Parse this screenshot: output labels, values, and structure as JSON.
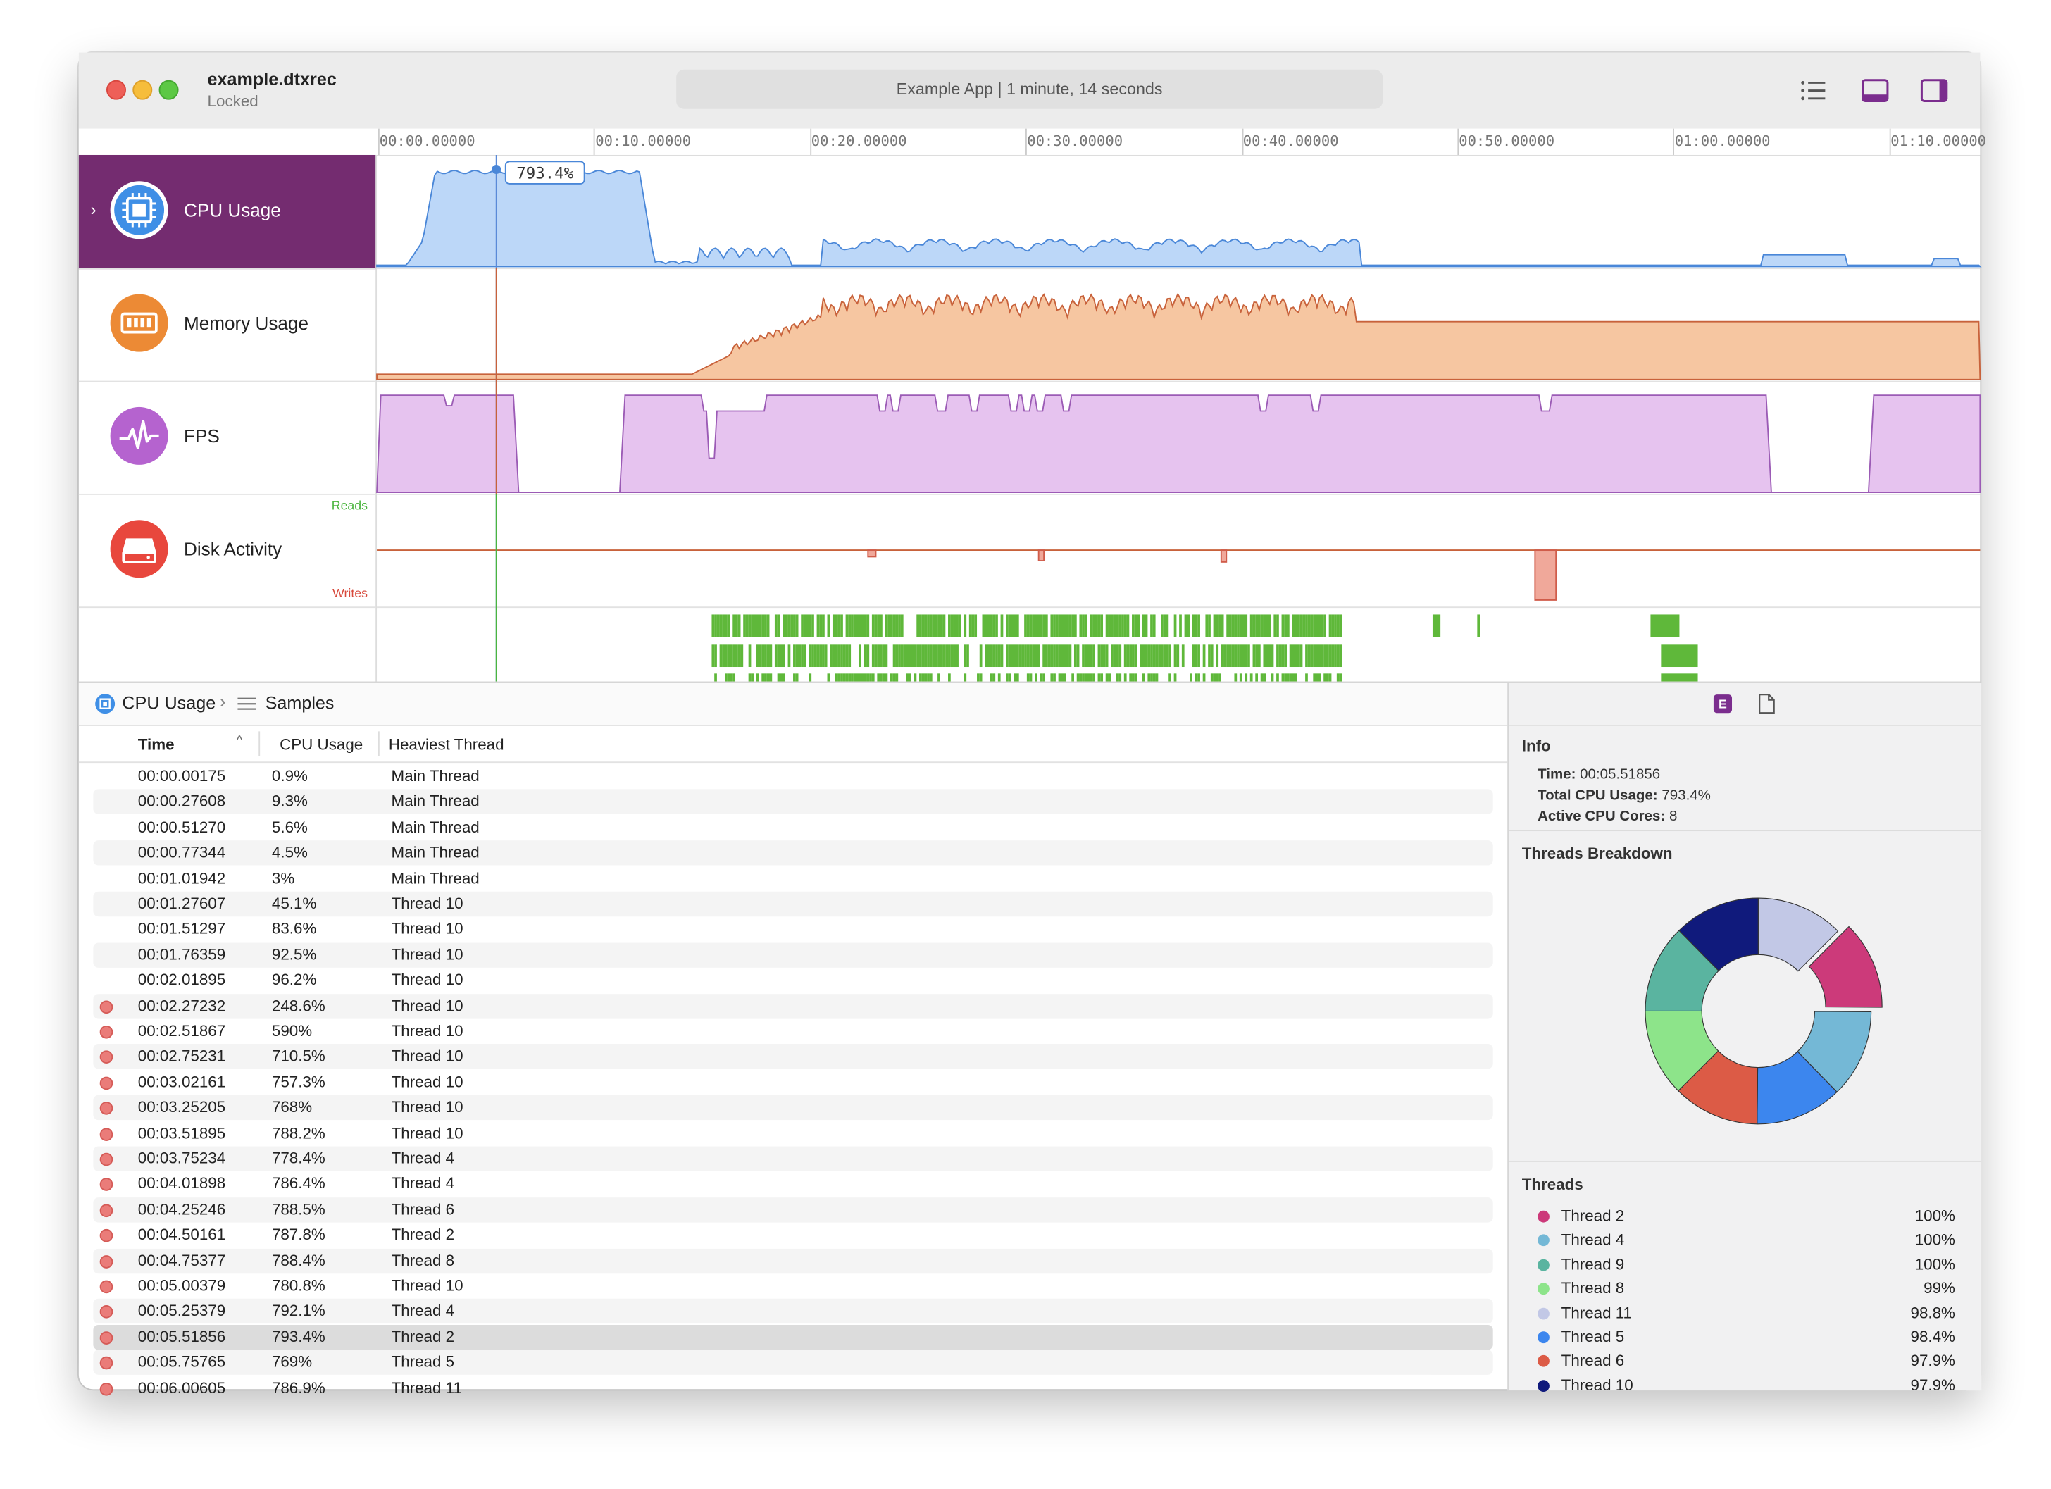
{
  "window": {
    "doc_title": "example.dtxrec",
    "doc_status": "Locked",
    "center_title": "Example App | 1 minute, 14 seconds"
  },
  "toolbar": {
    "icons": [
      "list-icon",
      "bottom-panel-icon",
      "right-panel-icon"
    ],
    "accent": "#7b2d8e"
  },
  "ruler": {
    "ticks": [
      "00:00.00000",
      "00:10.00000",
      "00:20.00000",
      "00:30.00000",
      "00:40.00000",
      "00:50.00000",
      "01:00.00000",
      "01:10.00000"
    ]
  },
  "timeline": {
    "cursor_value": "793.4%",
    "duration_seconds": 74,
    "cursor_seconds": 5.51856
  },
  "tracks": [
    {
      "name": "CPU Usage",
      "icon": "cpu-icon",
      "color": "#3f8fe6",
      "selected": true
    },
    {
      "name": "Memory Usage",
      "icon": "memory-icon",
      "color": "#ec8a35",
      "selected": false
    },
    {
      "name": "FPS",
      "icon": "fps-icon",
      "color": "#b563cf",
      "selected": false
    },
    {
      "name": "Disk Activity",
      "icon": "disk-icon",
      "color": "#e8473d",
      "selected": false,
      "reads_label": "Reads",
      "writes_label": "Writes"
    }
  ],
  "breadcrumb": {
    "first": "CPU Usage",
    "second": "Samples"
  },
  "table": {
    "headers": {
      "time": "Time",
      "cpu": "CPU Usage",
      "thread": "Heaviest Thread"
    },
    "rows": [
      {
        "time": "00:00.00175",
        "cpu": "0.9%",
        "thread": "Main Thread",
        "marker": false
      },
      {
        "time": "00:00.27608",
        "cpu": "9.3%",
        "thread": "Main Thread",
        "marker": false
      },
      {
        "time": "00:00.51270",
        "cpu": "5.6%",
        "thread": "Main Thread",
        "marker": false
      },
      {
        "time": "00:00.77344",
        "cpu": "4.5%",
        "thread": "Main Thread",
        "marker": false
      },
      {
        "time": "00:01.01942",
        "cpu": "3%",
        "thread": "Main Thread",
        "marker": false
      },
      {
        "time": "00:01.27607",
        "cpu": "45.1%",
        "thread": "Thread 10",
        "marker": false
      },
      {
        "time": "00:01.51297",
        "cpu": "83.6%",
        "thread": "Thread 10",
        "marker": false
      },
      {
        "time": "00:01.76359",
        "cpu": "92.5%",
        "thread": "Thread 10",
        "marker": false
      },
      {
        "time": "00:02.01895",
        "cpu": "96.2%",
        "thread": "Thread 10",
        "marker": false
      },
      {
        "time": "00:02.27232",
        "cpu": "248.6%",
        "thread": "Thread 10",
        "marker": true
      },
      {
        "time": "00:02.51867",
        "cpu": "590%",
        "thread": "Thread 10",
        "marker": true
      },
      {
        "time": "00:02.75231",
        "cpu": "710.5%",
        "thread": "Thread 10",
        "marker": true
      },
      {
        "time": "00:03.02161",
        "cpu": "757.3%",
        "thread": "Thread 10",
        "marker": true
      },
      {
        "time": "00:03.25205",
        "cpu": "768%",
        "thread": "Thread 10",
        "marker": true
      },
      {
        "time": "00:03.51895",
        "cpu": "788.2%",
        "thread": "Thread 10",
        "marker": true
      },
      {
        "time": "00:03.75234",
        "cpu": "778.4%",
        "thread": "Thread 4",
        "marker": true
      },
      {
        "time": "00:04.01898",
        "cpu": "786.4%",
        "thread": "Thread 4",
        "marker": true
      },
      {
        "time": "00:04.25246",
        "cpu": "788.5%",
        "thread": "Thread 6",
        "marker": true
      },
      {
        "time": "00:04.50161",
        "cpu": "787.8%",
        "thread": "Thread 2",
        "marker": true
      },
      {
        "time": "00:04.75377",
        "cpu": "788.4%",
        "thread": "Thread 8",
        "marker": true
      },
      {
        "time": "00:05.00379",
        "cpu": "780.8%",
        "thread": "Thread 10",
        "marker": true
      },
      {
        "time": "00:05.25379",
        "cpu": "792.1%",
        "thread": "Thread 4",
        "marker": true
      },
      {
        "time": "00:05.51856",
        "cpu": "793.4%",
        "thread": "Thread 2",
        "marker": true,
        "selected": true
      },
      {
        "time": "00:05.75765",
        "cpu": "769%",
        "thread": "Thread 5",
        "marker": true
      },
      {
        "time": "00:06.00605",
        "cpu": "786.9%",
        "thread": "Thread 11",
        "marker": true
      }
    ]
  },
  "inspector": {
    "info_title": "Info",
    "time_label": "Time:",
    "time_value": "00:05.51856",
    "total_label": "Total CPU Usage:",
    "total_value": "793.4%",
    "cores_label": "Active CPU Cores:",
    "cores_value": "8",
    "breakdown_title": "Threads Breakdown",
    "threads_title": "Threads",
    "threads": [
      {
        "name": "Thread 2",
        "pct": "100%",
        "value": 100,
        "color": "#cc3a7a"
      },
      {
        "name": "Thread 4",
        "pct": "100%",
        "value": 100,
        "color": "#74b8d6"
      },
      {
        "name": "Thread 9",
        "pct": "100%",
        "value": 100,
        "color": "#5ab4a0"
      },
      {
        "name": "Thread 8",
        "pct": "99%",
        "value": 99,
        "color": "#8de48a"
      },
      {
        "name": "Thread 11",
        "pct": "98.8%",
        "value": 98.8,
        "color": "#c2c8e6"
      },
      {
        "name": "Thread 5",
        "pct": "98.4%",
        "value": 98.4,
        "color": "#3c86ee"
      },
      {
        "name": "Thread 6",
        "pct": "97.9%",
        "value": 97.9,
        "color": "#dc5b46"
      },
      {
        "name": "Thread 10",
        "pct": "97.9%",
        "value": 97.9,
        "color": "#101a7c"
      }
    ],
    "donut_order": [
      "Thread 11",
      "Thread 2",
      "Thread 4",
      "Thread 5",
      "Thread 6",
      "Thread 8",
      "Thread 9",
      "Thread 10"
    ],
    "donut_selected": "Thread 2"
  }
}
